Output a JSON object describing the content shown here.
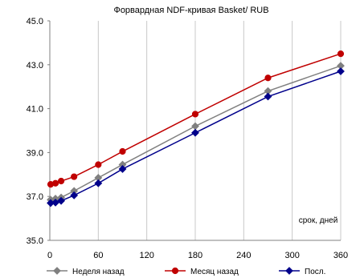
{
  "chart_data": {
    "type": "line",
    "title": "Форвардная NDF-кривая Basket/ RUB",
    "xlabel": "",
    "ylabel": "",
    "annotation": "срок, дней",
    "xlim": [
      0,
      360
    ],
    "ylim": [
      35.0,
      45.0
    ],
    "x_ticks": [
      0,
      60,
      120,
      180,
      240,
      300,
      360
    ],
    "y_ticks": [
      35.0,
      37.0,
      39.0,
      41.0,
      43.0,
      45.0
    ],
    "y_tick_labels": [
      "35.0",
      "37.0",
      "39.0",
      "41.0",
      "43.0",
      "45.0"
    ],
    "grid": "vertical",
    "legend_position": "bottom",
    "x": [
      1,
      7,
      14,
      30,
      60,
      90,
      180,
      270,
      360
    ],
    "series": [
      {
        "name": "Неделя назад",
        "color": "#808080",
        "marker": "diamond",
        "values": [
          36.85,
          36.9,
          36.95,
          37.25,
          37.85,
          38.45,
          40.2,
          41.8,
          42.95
        ]
      },
      {
        "name": "Месяц назад",
        "color": "#c00000",
        "marker": "circle",
        "values": [
          37.55,
          37.6,
          37.7,
          37.9,
          38.45,
          39.05,
          40.75,
          42.4,
          43.5
        ]
      },
      {
        "name": "Посл.",
        "color": "#00008b",
        "marker": "diamond",
        "values": [
          36.7,
          36.72,
          36.8,
          37.05,
          37.6,
          38.25,
          39.9,
          41.55,
          42.7
        ]
      }
    ]
  }
}
